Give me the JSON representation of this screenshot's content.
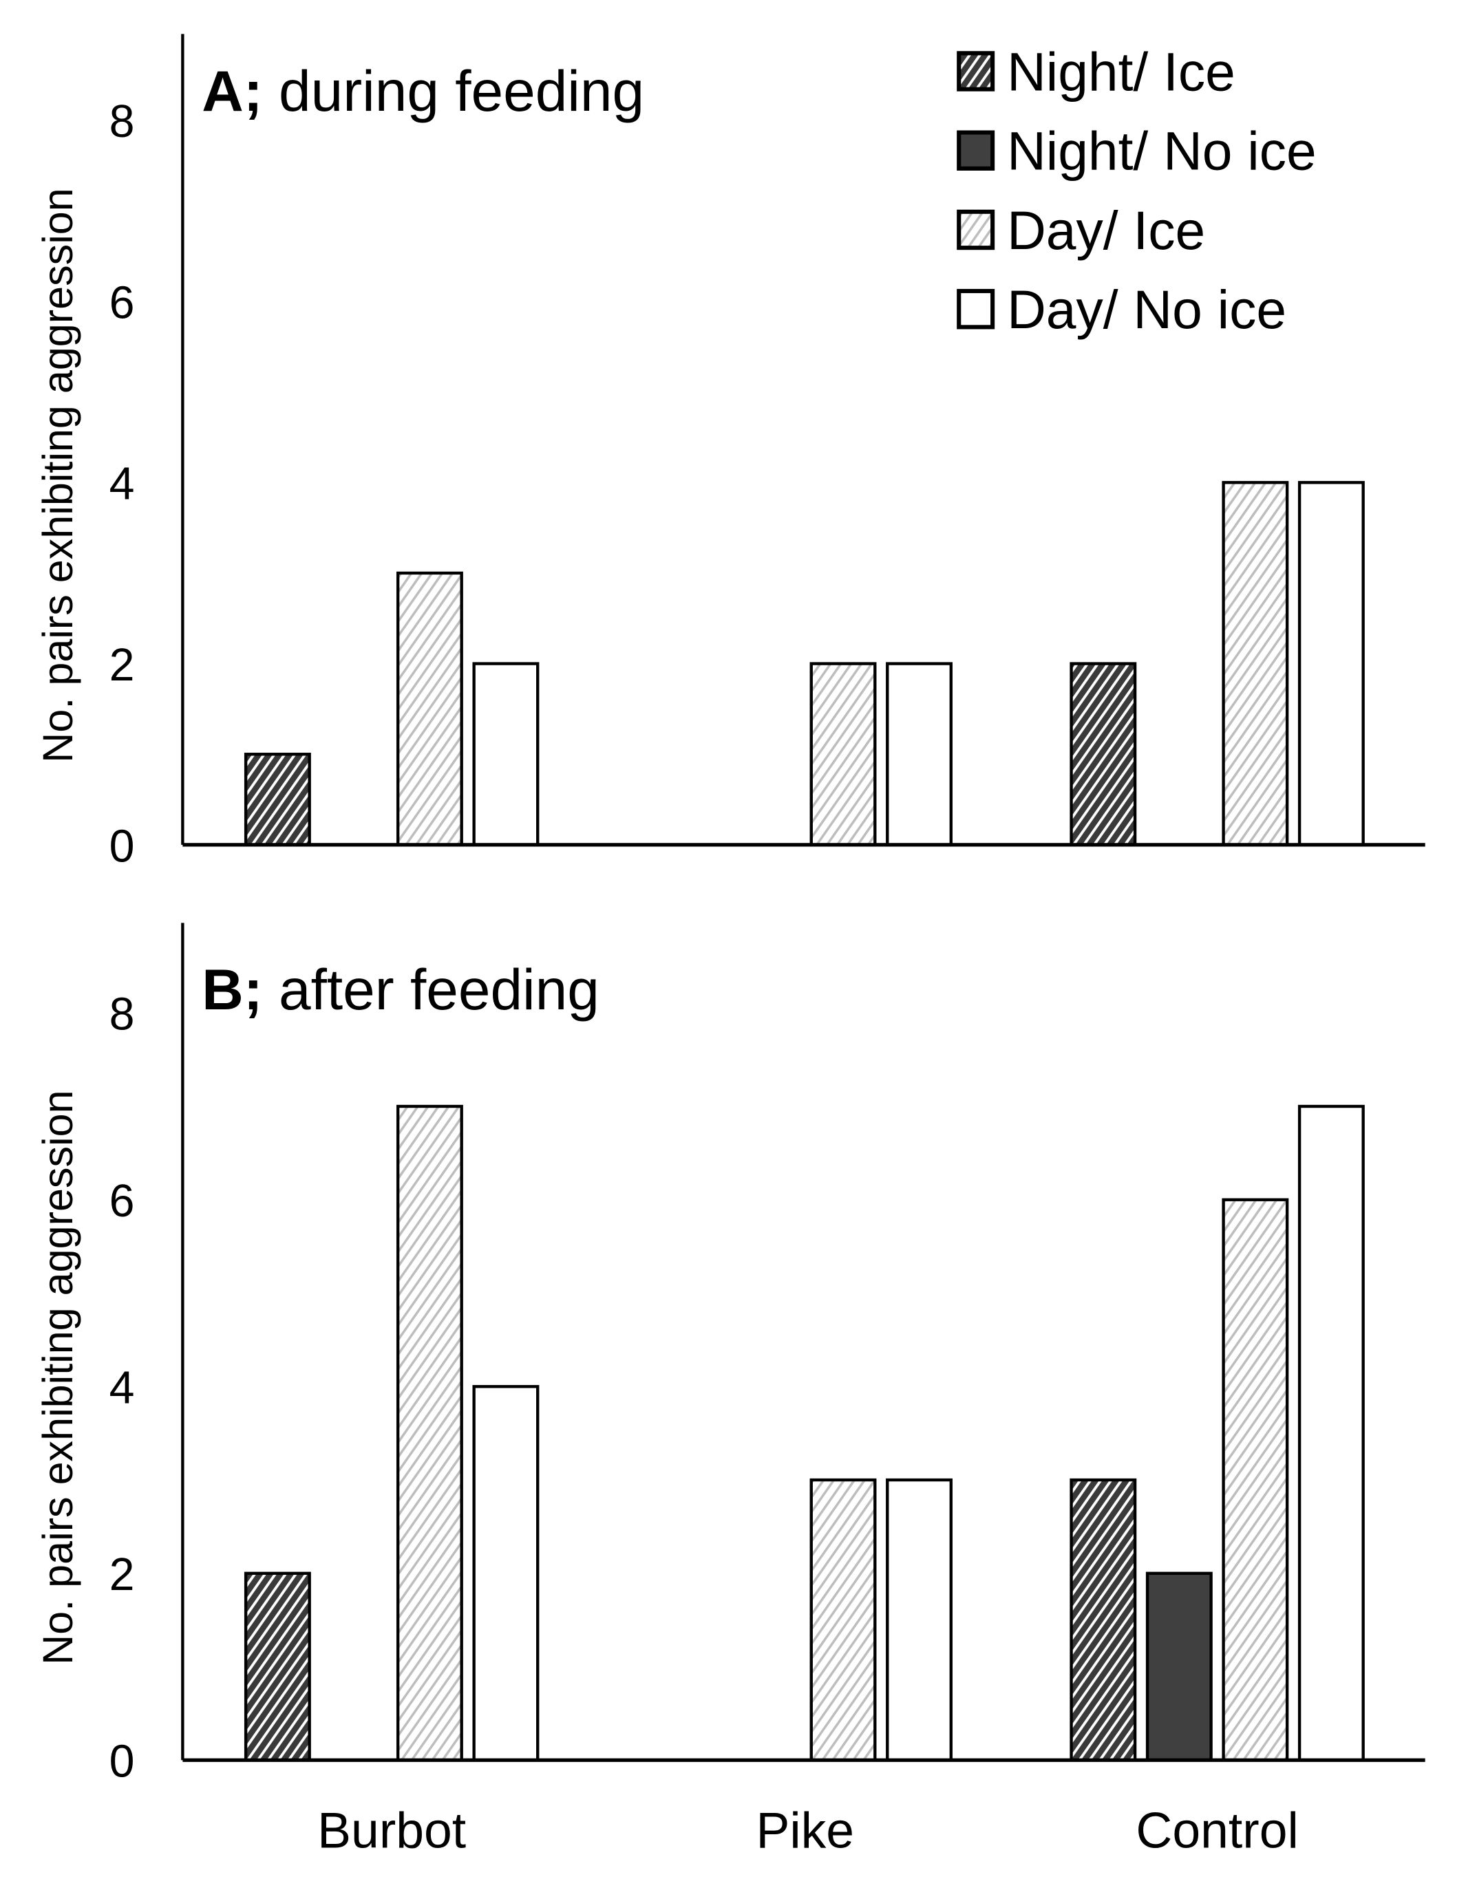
{
  "chart_data": [
    {
      "type": "bar",
      "panel_label": "A;",
      "title": "during feeding",
      "categories": [
        "Burbot",
        "Pike",
        "Control"
      ],
      "ylabel": "No. pairs exhibiting aggression",
      "xlabel": "",
      "ylim": [
        0,
        9
      ],
      "yticks": [
        0,
        2,
        4,
        6,
        8
      ],
      "grid": false,
      "legend_position": "top-right",
      "series": [
        {
          "name": "Night/ Ice",
          "values": [
            1,
            0,
            2
          ]
        },
        {
          "name": "Night/ No ice",
          "values": [
            0,
            0,
            0
          ]
        },
        {
          "name": "Day/ Ice",
          "values": [
            3,
            2,
            4
          ]
        },
        {
          "name": "Day/ No ice",
          "values": [
            2,
            2,
            4
          ]
        }
      ]
    },
    {
      "type": "bar",
      "panel_label": "B;",
      "title": "after feeding",
      "categories": [
        "Burbot",
        "Pike",
        "Control"
      ],
      "ylabel": "No. pairs exhibiting aggression",
      "xlabel": "",
      "ylim": [
        0,
        9
      ],
      "yticks": [
        0,
        2,
        4,
        6,
        8
      ],
      "grid": false,
      "series": [
        {
          "name": "Night/ Ice",
          "values": [
            2,
            0,
            3
          ]
        },
        {
          "name": "Night/ No ice",
          "values": [
            0,
            0,
            2
          ]
        },
        {
          "name": "Day/ Ice",
          "values": [
            7,
            3,
            6
          ]
        },
        {
          "name": "Day/ No ice",
          "values": [
            4,
            3,
            7
          ]
        }
      ]
    }
  ],
  "colors": {
    "night_ice": "#3a3a3a",
    "night_no_ice": "#404040",
    "day_ice_stripe": "#bdbdbd",
    "day_no_ice": "#ffffff"
  }
}
